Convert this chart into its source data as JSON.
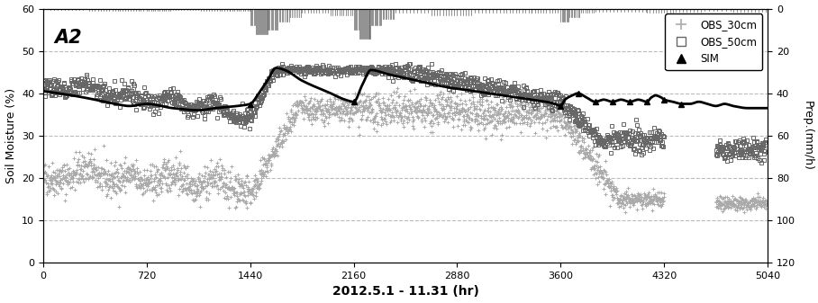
{
  "title_label": "A2",
  "xlabel": "2012.5.1 - 11.31 (hr)",
  "ylabel_left": "Soil Moisture (%)",
  "ylabel_right": "Prep.(mm/h)",
  "xlim": [
    0,
    5040
  ],
  "ylim_left": [
    0,
    60
  ],
  "ylim_right": [
    0,
    120
  ],
  "xticks": [
    0,
    720,
    1440,
    2160,
    2880,
    3600,
    4320,
    5040
  ],
  "yticks_left": [
    0,
    10,
    20,
    30,
    40,
    50,
    60
  ],
  "yticks_right": [
    0,
    20,
    40,
    60,
    80,
    100,
    120
  ],
  "grid_color": "#bbbbbb",
  "background_color": "#ffffff",
  "obs30_color": "#aaaaaa",
  "obs50_color": "#666666",
  "sim_color": "#000000",
  "precip_color": "#555555"
}
